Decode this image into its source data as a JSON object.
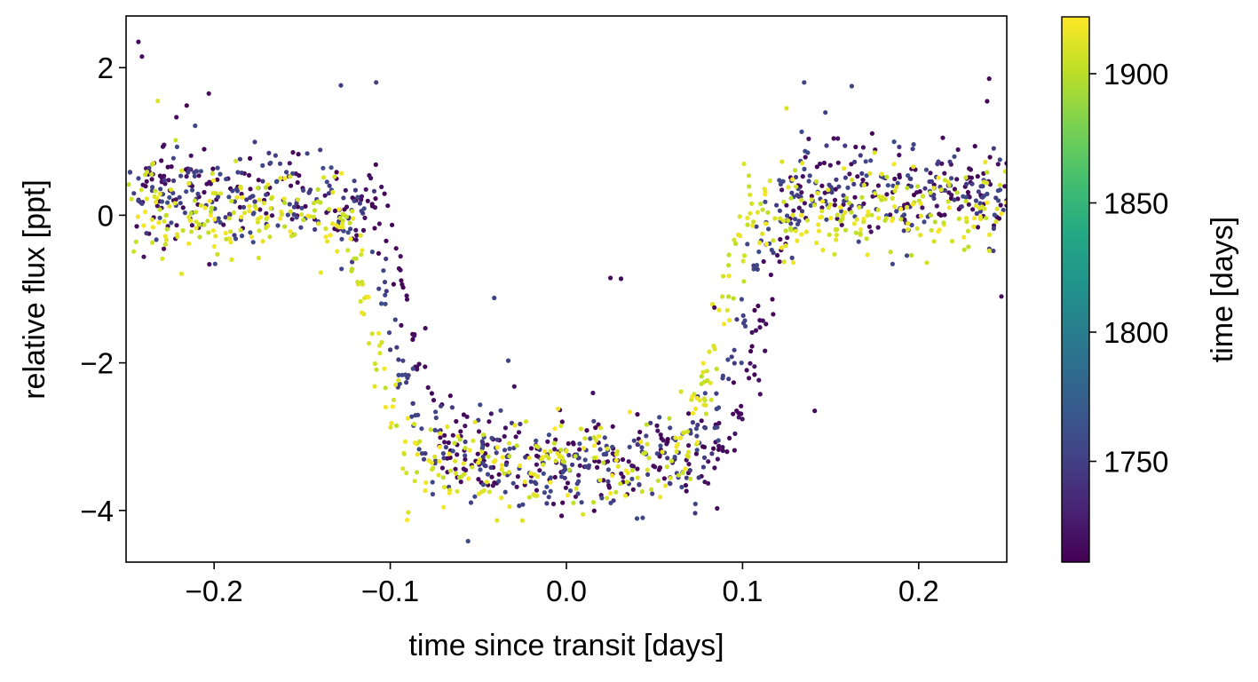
{
  "chart_data": {
    "type": "scatter",
    "title": "",
    "xlabel": "time since transit [days]",
    "ylabel": "relative flux [ppt]",
    "xlim": [
      -0.25,
      0.25
    ],
    "ylim": [
      -4.7,
      2.7
    ],
    "xticks": [
      -0.2,
      -0.1,
      0.0,
      0.1,
      0.2
    ],
    "xtick_labels": [
      "−0.2",
      "−0.1",
      "0.0",
      "0.1",
      "0.2"
    ],
    "yticks": [
      -4,
      -2,
      0,
      2
    ],
    "ytick_labels": [
      "−4",
      "−2",
      "0",
      "2"
    ],
    "grid": false,
    "colorbar": {
      "label": "time [days]",
      "colormap": "viridis",
      "range": [
        1711,
        1922
      ],
      "ticks": [
        1750,
        1800,
        1850,
        1900
      ],
      "tick_labels": [
        "1750",
        "1800",
        "1850",
        "1900"
      ]
    },
    "model": {
      "description_note": "",
      "depth_ppt": 3.45,
      "half_duration_days": 0.11,
      "ingress_days": 0.028
    },
    "groups": [
      {
        "t_min": 1711,
        "t_max": 1722,
        "color_value": 1716,
        "transit_center_offset": 0.012,
        "count": 520,
        "seed": 11
      },
      {
        "t_min": 1745,
        "t_max": 1760,
        "color_value": 1752,
        "transit_center_offset": 0.0,
        "count": 520,
        "seed": 23
      },
      {
        "t_min": 1900,
        "t_max": 1922,
        "color_value": 1910,
        "transit_center_offset": -0.012,
        "count": 620,
        "seed": 37
      }
    ],
    "noise_ppt": 0.32,
    "outliers": [
      {
        "x": -0.243,
        "y": 2.35,
        "c": 1716
      },
      {
        "x": -0.241,
        "y": 2.15,
        "c": 1716
      },
      {
        "x": -0.203,
        "y": 1.65,
        "c": 1716
      },
      {
        "x": -0.232,
        "y": 1.55,
        "c": 1910
      },
      {
        "x": -0.128,
        "y": 1.76,
        "c": 1752
      },
      {
        "x": -0.108,
        "y": 1.8,
        "c": 1752
      },
      {
        "x": 0.135,
        "y": 1.8,
        "c": 1752
      },
      {
        "x": 0.162,
        "y": 1.75,
        "c": 1752
      },
      {
        "x": 0.24,
        "y": 1.85,
        "c": 1716
      },
      {
        "x": -0.041,
        "y": -1.12,
        "c": 1752
      },
      {
        "x": 0.025,
        "y": -0.85,
        "c": 1716
      },
      {
        "x": 0.031,
        "y": -0.86,
        "c": 1716
      },
      {
        "x": 0.141,
        "y": -2.65,
        "c": 1716
      },
      {
        "x": 0.125,
        "y": 1.45,
        "c": 1910
      },
      {
        "x": -0.033,
        "y": -1.97,
        "c": 1752
      },
      {
        "x": 0.084,
        "y": -1.25,
        "c": 1716
      },
      {
        "x": 0.247,
        "y": -1.1,
        "c": 1716
      }
    ]
  }
}
